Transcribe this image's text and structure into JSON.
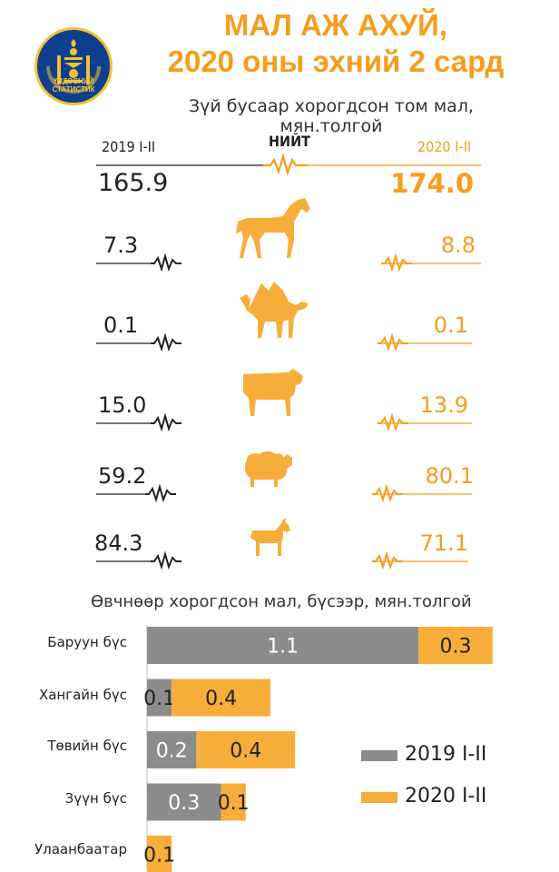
{
  "header": {
    "title_line1": "МАЛ АЖ АХУЙ,",
    "title_line2": "2020 оны эхний 2 сард",
    "logo_text_line1": "ҮНДЭСНИЙ",
    "logo_text_line2": "СТАТИСТИК"
  },
  "colors": {
    "orange": "#f59d1c",
    "bar_orange": "#f7ad3a",
    "gray": "#8c8c8c",
    "dark": "#222222"
  },
  "chart_data": [
    {
      "type": "table",
      "title": "Зүй бусаар хорогдсон том мал, мян.толгой",
      "columns": [
        "2019 I-II",
        "НИЙТ",
        "2020 I-II"
      ],
      "total": {
        "label": "НИЙТ",
        "v2019": "165.9",
        "v2020": "174.0"
      },
      "rows": [
        {
          "animal": "horse-icon",
          "v2019": "7.3",
          "v2020": "8.8"
        },
        {
          "animal": "camel-icon",
          "v2019": "0.1",
          "v2020": "0.1"
        },
        {
          "animal": "cow-icon",
          "v2019": "15.0",
          "v2020": "13.9"
        },
        {
          "animal": "sheep-icon",
          "v2019": "59.2",
          "v2020": "80.1"
        },
        {
          "animal": "goat-icon",
          "v2019": "84.3",
          "v2020": "71.1"
        }
      ]
    },
    {
      "type": "bar",
      "stacked": true,
      "orientation": "horizontal",
      "title": "Өвчнөөр хорогдсон мал, бүсээр, мян.толгой",
      "categories": [
        "Баруун бүс",
        "Хангайн бүс",
        "Төвийн бүс",
        "Зүүн бүс",
        "Улаанбаатар"
      ],
      "series": [
        {
          "name": "2019 I-II",
          "color": "#8c8c8c",
          "values": [
            1.1,
            0.1,
            0.2,
            0.3,
            0
          ],
          "labels": [
            "1.1",
            "0.1",
            "0.2",
            "0.3",
            ""
          ]
        },
        {
          "name": "2020 I-II",
          "color": "#f7ad3a",
          "values": [
            0.3,
            0.4,
            0.4,
            0.1,
            0.1
          ],
          "labels": [
            "0.3",
            "0.4",
            "0.4",
            "0.1",
            "0.1"
          ]
        }
      ],
      "legend": "bottom-right"
    }
  ]
}
